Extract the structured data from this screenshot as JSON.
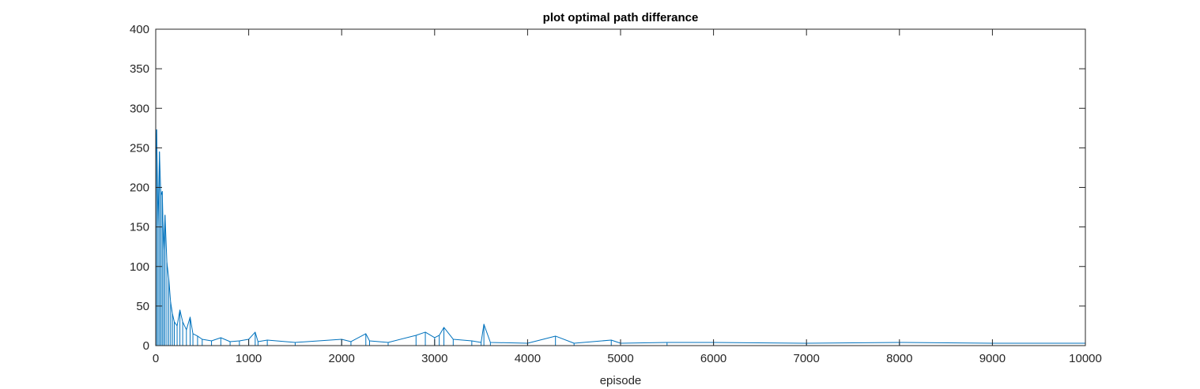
{
  "chart_data": {
    "type": "line",
    "title": "plot optimal path differance",
    "xlabel": "episode",
    "ylabel": "",
    "xlim": [
      0,
      10000
    ],
    "ylim": [
      0,
      400
    ],
    "xticks": [
      0,
      1000,
      2000,
      3000,
      4000,
      5000,
      6000,
      7000,
      8000,
      9000,
      10000
    ],
    "yticks": [
      0,
      50,
      100,
      150,
      200,
      250,
      300,
      350,
      400
    ],
    "grid": false,
    "box": true,
    "line_color": "#0072BD",
    "series": [
      {
        "name": "",
        "x": [
          0,
          10,
          25,
          40,
          55,
          70,
          85,
          100,
          120,
          140,
          160,
          180,
          200,
          230,
          260,
          290,
          330,
          370,
          400,
          450,
          500,
          600,
          700,
          800,
          900,
          1000,
          1070,
          1100,
          1200,
          1500,
          2000,
          2100,
          2260,
          2300,
          2500,
          2800,
          2900,
          3000,
          3050,
          3100,
          3200,
          3400,
          3500,
          3530,
          3600,
          4000,
          4300,
          4500,
          4900,
          5000,
          5500,
          6000,
          7000,
          8000,
          9000,
          10000
        ],
        "y": [
          230,
          273,
          150,
          245,
          190,
          195,
          120,
          165,
          105,
          85,
          55,
          40,
          30,
          25,
          45,
          30,
          20,
          36,
          15,
          12,
          8,
          6,
          10,
          5,
          6,
          8,
          17,
          5,
          7,
          4,
          8,
          5,
          15,
          6,
          4,
          13,
          17,
          10,
          13,
          23,
          8,
          6,
          4,
          27,
          4,
          3,
          12,
          3,
          7,
          3,
          4,
          4,
          3,
          4,
          3,
          3
        ]
      }
    ]
  }
}
